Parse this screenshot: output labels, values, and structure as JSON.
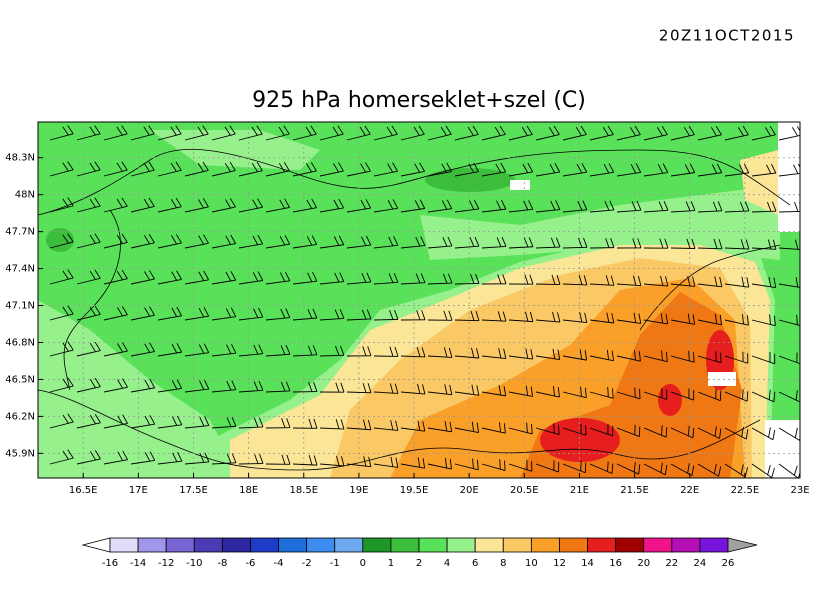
{
  "timestamp": "20Z11OCT2015",
  "title": "925 hPa homerseklet+szel (C)",
  "map": {
    "xlim": [
      16.09,
      23
    ],
    "ylim": [
      45.7,
      48.59
    ],
    "lon_ticks": [
      {
        "value": 16.5,
        "label": "16.5E"
      },
      {
        "value": 17,
        "label": "17E"
      },
      {
        "value": 17.5,
        "label": "17.5E"
      },
      {
        "value": 18,
        "label": "18E"
      },
      {
        "value": 18.5,
        "label": "18.5E"
      },
      {
        "value": 19,
        "label": "19E"
      },
      {
        "value": 19.5,
        "label": "19.5E"
      },
      {
        "value": 20,
        "label": "20E"
      },
      {
        "value": 20.5,
        "label": "20.5E"
      },
      {
        "value": 21,
        "label": "21E"
      },
      {
        "value": 21.5,
        "label": "21.5E"
      },
      {
        "value": 22,
        "label": "22E"
      },
      {
        "value": 22.5,
        "label": "22.5E"
      },
      {
        "value": 23,
        "label": "23E"
      }
    ],
    "lat_ticks": [
      {
        "value": 48.3,
        "label": "48.3N"
      },
      {
        "value": 48,
        "label": "48N"
      },
      {
        "value": 47.7,
        "label": "47.7N"
      },
      {
        "value": 47.4,
        "label": "47.4N"
      },
      {
        "value": 47.1,
        "label": "47.1N"
      },
      {
        "value": 46.8,
        "label": "46.8N"
      },
      {
        "value": 46.5,
        "label": "46.5N"
      },
      {
        "value": 46.2,
        "label": "46.2N"
      },
      {
        "value": 45.9,
        "label": "45.9N"
      }
    ],
    "grid": true
  },
  "colorbar": {
    "labels": [
      -16,
      -14,
      -12,
      -10,
      -8,
      -6,
      -4,
      -2,
      -1,
      0,
      1,
      2,
      4,
      6,
      8,
      10,
      12,
      14,
      16,
      20,
      22,
      24,
      26
    ],
    "colors": [
      "#e1dcfa",
      "#a096eb",
      "#7864d2",
      "#4b3cb4",
      "#2d28a0",
      "#1e3cc8",
      "#1e6edc",
      "#3c8cf0",
      "#6eaaf0",
      "#1e9628",
      "#3cbe3c",
      "#5ae15a",
      "#96f08c",
      "#fae696",
      "#fac864",
      "#faa028",
      "#f07814",
      "#e61e1e",
      "#a00000",
      "#f0148c",
      "#b40fb4",
      "#7814dc"
    ],
    "under_color": "#ffffff",
    "over_color": "#a0a0a0"
  }
}
